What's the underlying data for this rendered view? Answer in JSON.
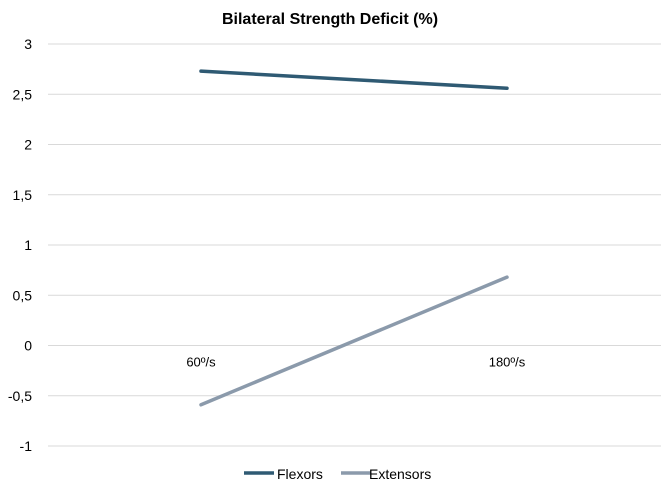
{
  "chart_data": {
    "type": "line",
    "title": "Bilateral Strength Deficit (%)",
    "xlabel": "",
    "ylabel": "",
    "categories": [
      "60º/s",
      "180º/s"
    ],
    "ylim": [
      -1,
      3
    ],
    "yticks": [
      3,
      2.5,
      2,
      1.5,
      1,
      0.5,
      0,
      -0.5,
      -1
    ],
    "ytick_labels": [
      "3",
      "2,5",
      "2",
      "1,5",
      "1",
      "0,5",
      "0",
      "-0,5",
      "-1"
    ],
    "grid": true,
    "legend_position": "bottom",
    "series": [
      {
        "name": "Flexors",
        "values": [
          2.73,
          2.56
        ],
        "color": "#2f5a73"
      },
      {
        "name": "Extensors",
        "values": [
          -0.59,
          0.68
        ],
        "color": "#8b9aab"
      }
    ]
  }
}
